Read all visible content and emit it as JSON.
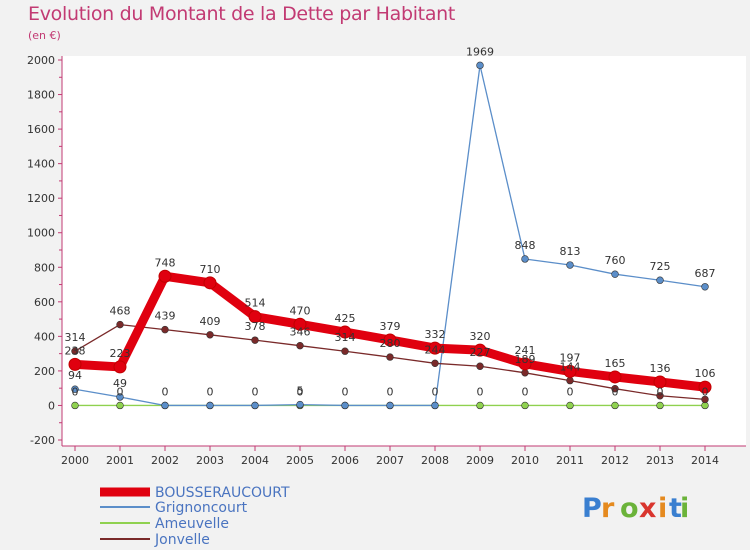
{
  "title": "Evolution du Montant de la Dette par Habitant",
  "unit": "(en €)",
  "brand": "Proxiti",
  "chart_data": {
    "type": "line",
    "x": [
      "2000",
      "2001",
      "2002",
      "2003",
      "2004",
      "2005",
      "2006",
      "2007",
      "2008",
      "2009",
      "2010",
      "2011",
      "2012",
      "2013",
      "2014"
    ],
    "ylim": [
      -200,
      2000
    ],
    "yticks": [
      -200,
      0,
      200,
      400,
      600,
      800,
      1000,
      1200,
      1400,
      1600,
      1800,
      2000
    ],
    "grid": false,
    "legend_position": "bottom-left",
    "series": [
      {
        "name": "BOUSSERAUCOURT",
        "color": "#e0000f",
        "values": [
          238,
          223,
          748,
          710,
          514,
          470,
          425,
          379,
          332,
          320,
          241,
          197,
          165,
          136,
          106
        ],
        "labels": [
          "238",
          "223",
          "748",
          "710",
          "514",
          "470",
          "425",
          "379",
          "332",
          "320",
          "241",
          "197",
          "165",
          "136",
          "106"
        ]
      },
      {
        "name": "Grignoncourt",
        "color": "#5b8ec9",
        "values": [
          94,
          49,
          0,
          0,
          0,
          5,
          0,
          0,
          0,
          1969,
          848,
          813,
          760,
          725,
          687
        ],
        "labels": [
          "94",
          "49",
          "0",
          "0",
          "0",
          "5",
          "0",
          "0",
          "0",
          "1969",
          "848",
          "813",
          "760",
          "725",
          "687"
        ]
      },
      {
        "name": "Ameuvelle",
        "color": "#8fd14f",
        "values": [
          0,
          0,
          0,
          0,
          0,
          0,
          0,
          0,
          0,
          0,
          0,
          0,
          0,
          0,
          0
        ],
        "labels": [
          "0",
          "0",
          "",
          "",
          "",
          "0",
          "",
          "",
          "",
          "0",
          "0",
          "0",
          "0",
          "0",
          "0"
        ]
      },
      {
        "name": "Jonvelle",
        "color": "#7a2a2a",
        "values": [
          314,
          468,
          439,
          409,
          378,
          346,
          314,
          280,
          244,
          227,
          189,
          144,
          97,
          56,
          35
        ],
        "labels": [
          "314",
          "468",
          "439",
          "409",
          "378",
          "346",
          "314",
          "280",
          "244",
          "227",
          "189",
          "144",
          "",
          "",
          ""
        ]
      }
    ]
  }
}
